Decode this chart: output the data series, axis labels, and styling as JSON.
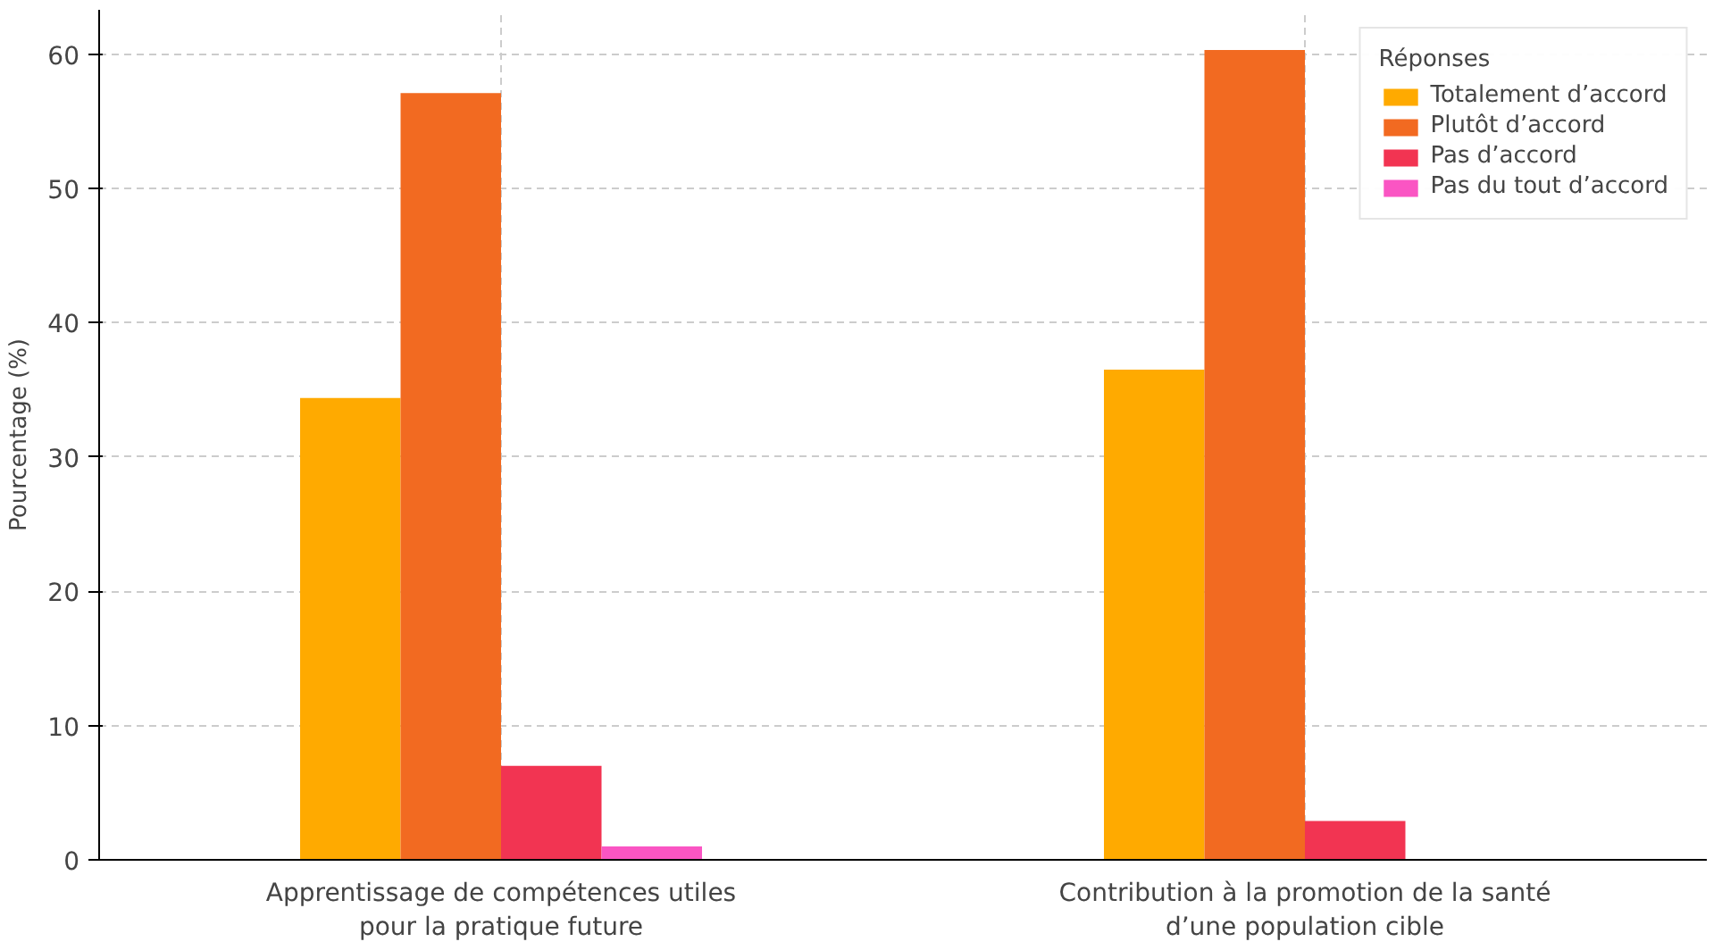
{
  "chart_data": {
    "type": "bar",
    "ylabel": "Pourcentage (%)",
    "legend_title": "Réponses",
    "categories": [
      "Apprentissage de compétences utiles\npour la pratique future",
      "Contribution à la promotion de la santé\nd’une population cible"
    ],
    "series": [
      {
        "name": "Totalement d’accord",
        "color": "#ffaa00",
        "values": [
          34.4,
          36.5
        ]
      },
      {
        "name": "Plutôt d’accord",
        "color": "#f26a21",
        "values": [
          57.1,
          60.3
        ]
      },
      {
        "name": "Pas d’accord",
        "color": "#f23452",
        "values": [
          7.0,
          2.9
        ]
      },
      {
        "name": "Pas du tout d’accord",
        "color": "#fa55c3",
        "values": [
          1.0,
          0
        ]
      }
    ],
    "ylim": [
      0,
      63.3
    ],
    "yticks": [
      0,
      10,
      20,
      30,
      40,
      50,
      60
    ],
    "grid": true,
    "legend": "top right"
  }
}
